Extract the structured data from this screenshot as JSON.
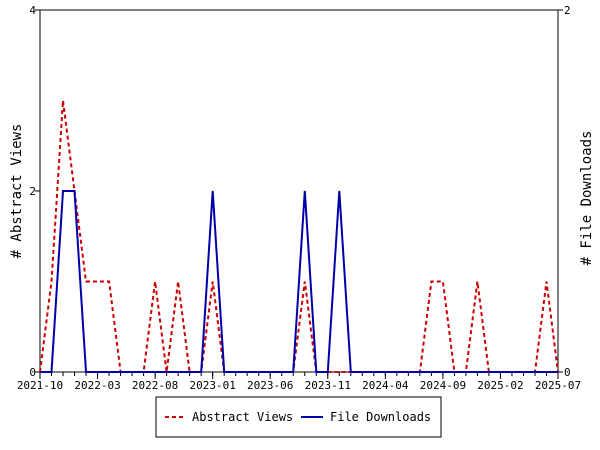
{
  "chart_data": {
    "type": "line",
    "ylabel_left": "# Abstract Views",
    "ylabel_right": "# File Downloads",
    "ylim_left": [
      0,
      4
    ],
    "ylim_right": [
      0,
      2
    ],
    "yticks_left": [
      "0",
      "2",
      "4"
    ],
    "yticks_right": [
      "0",
      "2"
    ],
    "xtick_labels": [
      "2021-10",
      "2022-03",
      "2022-08",
      "2023-01",
      "2023-06",
      "2023-11",
      "2024-04",
      "2024-09",
      "2025-02",
      "2025-07"
    ],
    "x_start": "2021-10",
    "x_end": "2025-07",
    "legend_position": "bottom",
    "grid": false,
    "series": [
      {
        "name": "Abstract Views",
        "axis": "left",
        "color": "#cc0000",
        "style": "dashed",
        "points": [
          [
            "2021-10",
            0
          ],
          [
            "2021-11",
            1
          ],
          [
            "2021-12",
            3
          ],
          [
            "2022-01",
            2
          ],
          [
            "2022-02",
            1
          ],
          [
            "2022-03",
            1
          ],
          [
            "2022-04",
            1
          ],
          [
            "2022-05",
            0
          ],
          [
            "2022-06",
            0
          ],
          [
            "2022-07",
            0
          ],
          [
            "2022-08",
            1
          ],
          [
            "2022-09",
            0
          ],
          [
            "2022-10",
            1
          ],
          [
            "2022-11",
            0
          ],
          [
            "2022-12",
            0
          ],
          [
            "2023-01",
            1
          ],
          [
            "2023-02",
            0
          ],
          [
            "2023-03",
            0
          ],
          [
            "2023-04",
            0
          ],
          [
            "2023-05",
            0
          ],
          [
            "2023-06",
            0
          ],
          [
            "2023-07",
            0
          ],
          [
            "2023-08",
            0
          ],
          [
            "2023-09",
            1
          ],
          [
            "2023-10",
            0
          ],
          [
            "2023-11",
            0
          ],
          [
            "2023-12",
            0
          ],
          [
            "2024-01",
            0
          ],
          [
            "2024-02",
            0
          ],
          [
            "2024-03",
            0
          ],
          [
            "2024-04",
            0
          ],
          [
            "2024-05",
            0
          ],
          [
            "2024-06",
            0
          ],
          [
            "2024-07",
            0
          ],
          [
            "2024-08",
            1
          ],
          [
            "2024-09",
            1
          ],
          [
            "2024-10",
            0
          ],
          [
            "2024-11",
            0
          ],
          [
            "2024-12",
            1
          ],
          [
            "2025-01",
            0
          ],
          [
            "2025-02",
            0
          ],
          [
            "2025-03",
            0
          ],
          [
            "2025-04",
            0
          ],
          [
            "2025-05",
            0
          ],
          [
            "2025-06",
            1
          ],
          [
            "2025-07",
            0
          ]
        ]
      },
      {
        "name": "File Downloads",
        "axis": "right",
        "color": "#0000aa",
        "style": "solid",
        "points": [
          [
            "2021-10",
            0
          ],
          [
            "2021-11",
            0
          ],
          [
            "2021-12",
            1
          ],
          [
            "2022-01",
            1
          ],
          [
            "2022-02",
            0
          ],
          [
            "2022-03",
            0
          ],
          [
            "2022-04",
            0
          ],
          [
            "2022-05",
            0
          ],
          [
            "2022-06",
            0
          ],
          [
            "2022-07",
            0
          ],
          [
            "2022-08",
            0
          ],
          [
            "2022-09",
            0
          ],
          [
            "2022-10",
            0
          ],
          [
            "2022-11",
            0
          ],
          [
            "2022-12",
            0
          ],
          [
            "2023-01",
            1
          ],
          [
            "2023-02",
            0
          ],
          [
            "2023-03",
            0
          ],
          [
            "2023-04",
            0
          ],
          [
            "2023-05",
            0
          ],
          [
            "2023-06",
            0
          ],
          [
            "2023-07",
            0
          ],
          [
            "2023-08",
            0
          ],
          [
            "2023-09",
            1
          ],
          [
            "2023-10",
            0
          ],
          [
            "2023-11",
            0
          ],
          [
            "2023-12",
            1
          ],
          [
            "2024-01",
            0
          ],
          [
            "2024-02",
            0
          ],
          [
            "2024-03",
            0
          ],
          [
            "2024-04",
            0
          ],
          [
            "2024-05",
            0
          ],
          [
            "2024-06",
            0
          ],
          [
            "2024-07",
            0
          ],
          [
            "2024-08",
            0
          ],
          [
            "2024-09",
            0
          ],
          [
            "2024-10",
            0
          ],
          [
            "2024-11",
            0
          ],
          [
            "2024-12",
            0
          ],
          [
            "2025-01",
            0
          ],
          [
            "2025-02",
            0
          ],
          [
            "2025-03",
            0
          ],
          [
            "2025-04",
            0
          ],
          [
            "2025-05",
            0
          ],
          [
            "2025-06",
            0
          ],
          [
            "2025-07",
            0
          ]
        ]
      }
    ]
  }
}
